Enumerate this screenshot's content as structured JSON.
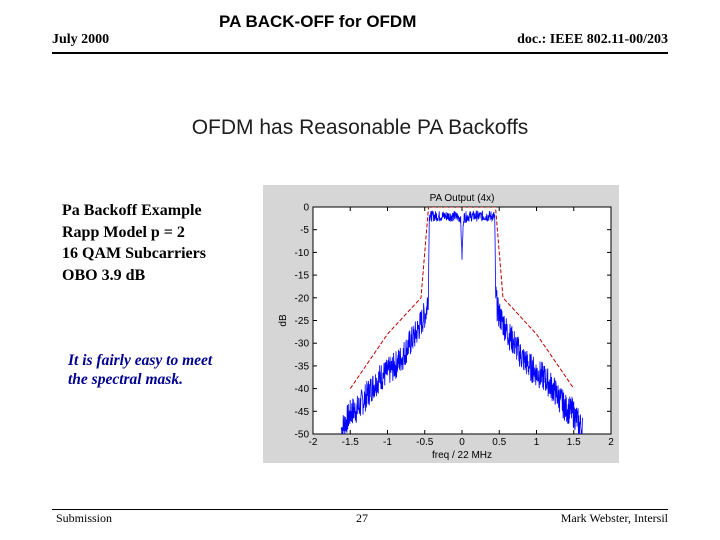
{
  "header": {
    "date": "July 2000",
    "title": "PA BACK-OFF for OFDM",
    "doc": "doc.: IEEE 802.11-00/203"
  },
  "slide": {
    "title": "OFDM has Reasonable PA Backoffs",
    "bullets": [
      "Pa Backoff Example",
      "Rapp Model p = 2",
      "16 QAM Subcarriers",
      "OBO 3.9 dB"
    ],
    "note": [
      "It is fairly easy to meet",
      "the spectral mask."
    ]
  },
  "colors": {
    "spectrum": "#0000ff",
    "mask": "#c00000",
    "note": "#000090"
  },
  "chart_data": {
    "type": "line",
    "title": "PA Output (4x)",
    "xlabel": "freq / 22 MHz",
    "ylabel": "dB",
    "xlim": [
      -2,
      2
    ],
    "ylim": [
      -50,
      0
    ],
    "xticks": [
      "-2",
      "-1.5",
      "-1",
      "-0.5",
      "0",
      "0.5",
      "1",
      "1.5",
      "2"
    ],
    "yticks": [
      "0",
      "-5",
      "-10",
      "-15",
      "-20",
      "-25",
      "-30",
      "-35",
      "-40",
      "-45",
      "-50"
    ],
    "series": [
      {
        "style": "solid-noisy",
        "color": "#0000ff",
        "x": [
          -1.62,
          -1.55,
          -1.48,
          -1.4,
          -1.3,
          -1.2,
          -1.1,
          -1.0,
          -0.9,
          -0.8,
          -0.7,
          -0.62,
          -0.55,
          -0.48,
          -0.45,
          -0.44,
          -0.3,
          -0.1,
          -0.02,
          0.0,
          0.02,
          0.1,
          0.3,
          0.44,
          0.45,
          0.48,
          0.55,
          0.62,
          0.7,
          0.8,
          0.9,
          1.0,
          1.1,
          1.2,
          1.3,
          1.4,
          1.48,
          1.55,
          1.62
        ],
        "y": [
          -49,
          -47,
          -45,
          -44.5,
          -42,
          -39.5,
          -37.5,
          -36.5,
          -35,
          -33,
          -30,
          -28,
          -25.5,
          -23,
          -19,
          -2,
          -2,
          -2,
          -2.3,
          -11,
          -2.3,
          -2,
          -2,
          -2,
          -19,
          -23,
          -25.5,
          -28,
          -30,
          -33,
          -35,
          -36.5,
          -37.5,
          -39.5,
          -42,
          -44.5,
          -45,
          -47,
          -49
        ]
      },
      {
        "style": "dashed",
        "color": "#c00000",
        "x": [
          -1.5,
          -1.0,
          -0.55,
          -0.45,
          0.45,
          0.55,
          1.0,
          1.5
        ],
        "y": [
          -40,
          -28,
          -20,
          0,
          0,
          -20,
          -28,
          -40
        ]
      }
    ]
  },
  "footer": {
    "left": "Submission",
    "page": "27",
    "right": "Mark Webster, Intersil"
  }
}
